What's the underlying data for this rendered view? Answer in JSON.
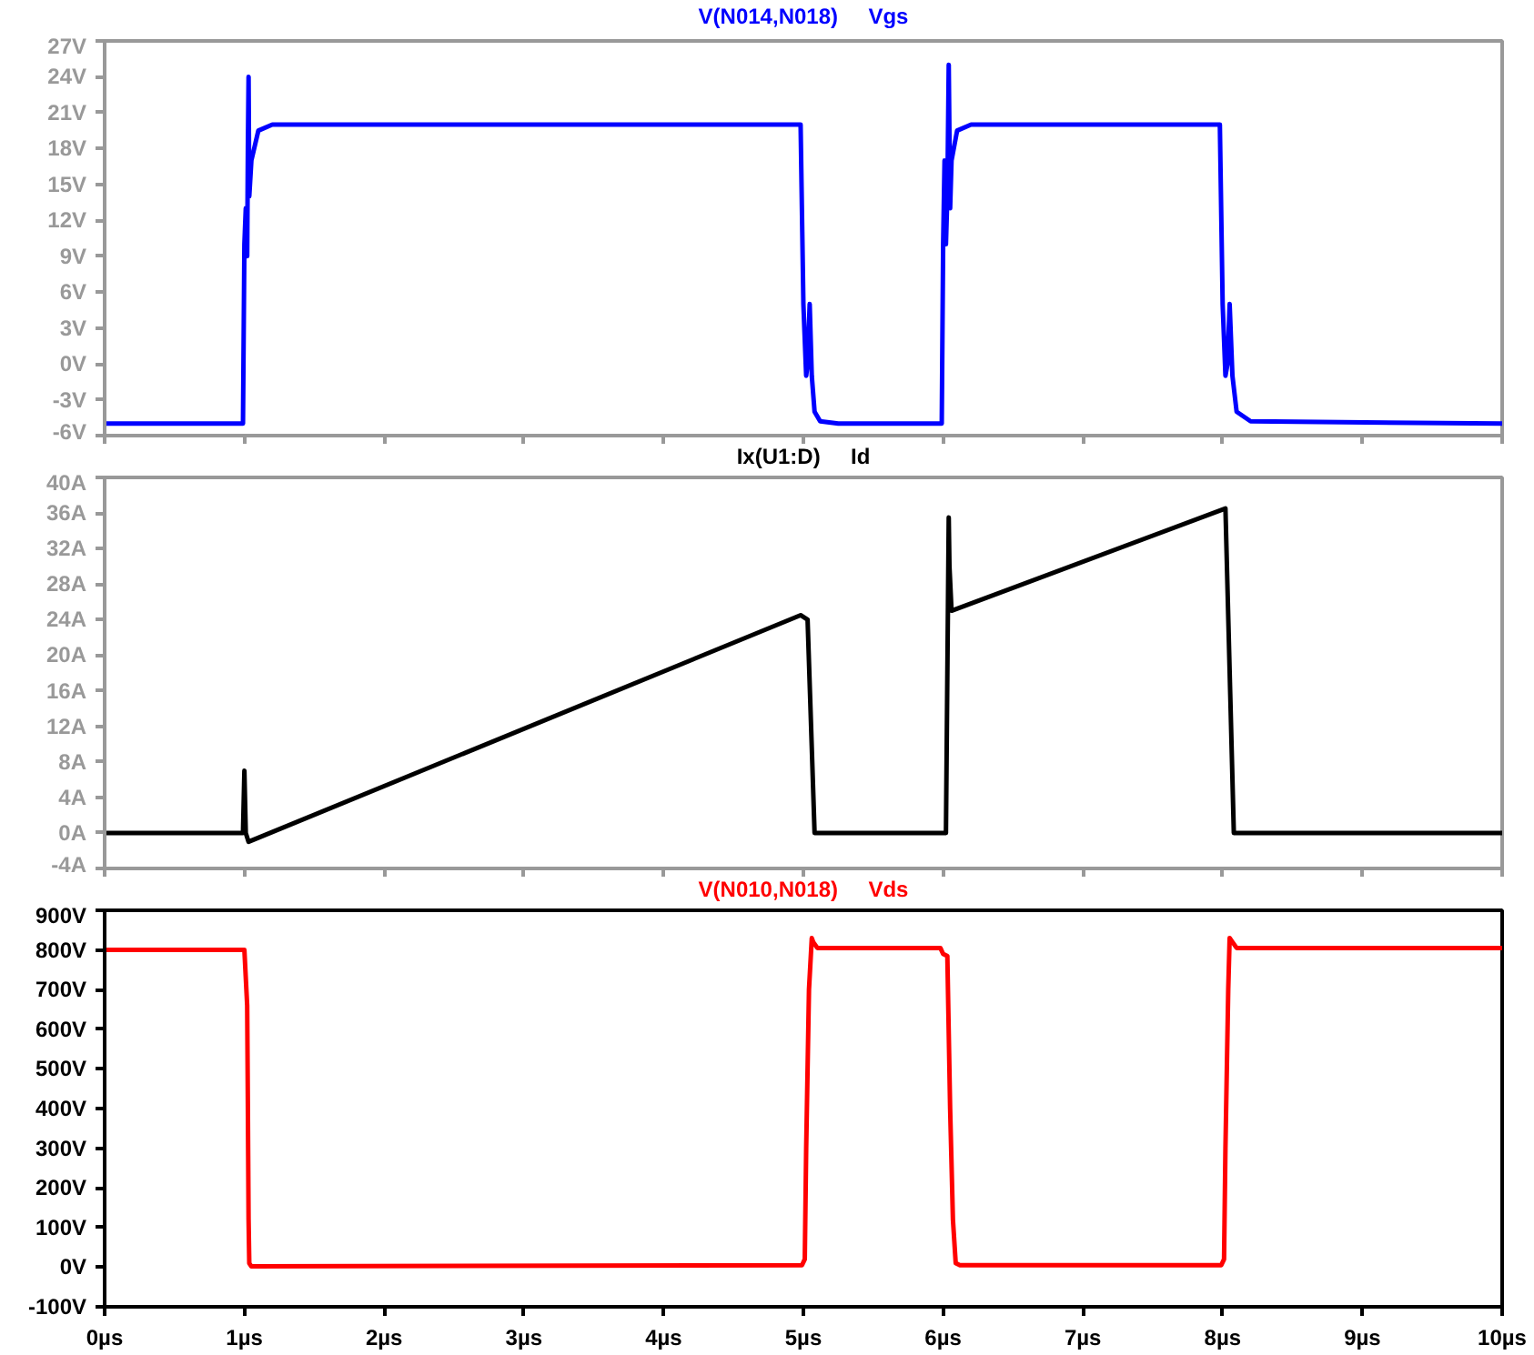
{
  "chart_data": [
    {
      "type": "line",
      "title": "Vgs",
      "x": [
        0,
        0.99,
        1.0,
        1.01,
        1.02,
        1.025,
        1.03,
        1.035,
        1.05,
        1.1,
        1.2,
        4.98,
        5.0,
        5.02,
        5.03,
        5.045,
        5.06,
        5.08,
        5.12,
        5.25,
        5.99,
        6.0,
        6.01,
        6.02,
        6.03,
        6.04,
        6.05,
        6.06,
        6.1,
        6.2,
        6.3,
        7.98,
        8.0,
        8.02,
        8.035,
        8.05,
        8.07,
        8.1,
        8.2,
        10
      ],
      "series": [
        {
          "name": "V(N014,N018)",
          "color": "#0000ff",
          "values": [
            -5,
            -5,
            10,
            13,
            9,
            18,
            24,
            14,
            17,
            19.5,
            20,
            20,
            5,
            -1,
            0,
            5,
            -1,
            -4,
            -4.8,
            -5,
            -5,
            10,
            17,
            10,
            14,
            25,
            13,
            17,
            19.5,
            20,
            20,
            20,
            5,
            -1,
            0,
            5,
            -1,
            -4,
            -4.8,
            -5
          ]
        }
      ],
      "xlim": [
        0,
        10
      ],
      "xticks": [
        {
          "value": 0,
          "label": null
        },
        {
          "value": 1,
          "label": null
        },
        {
          "value": 2,
          "label": null
        },
        {
          "value": 3,
          "label": null
        },
        {
          "value": 4,
          "label": null
        },
        {
          "value": 5,
          "label": null
        },
        {
          "value": 6,
          "label": null
        },
        {
          "value": 7,
          "label": null
        },
        {
          "value": 8,
          "label": null
        },
        {
          "value": 9,
          "label": null
        },
        {
          "value": 10,
          "label": null
        }
      ],
      "ylim": [
        -6,
        27
      ],
      "yticks": [
        {
          "value": -6,
          "label": "-6V"
        },
        {
          "value": -3,
          "label": "-3V"
        },
        {
          "value": 0,
          "label": "0V"
        },
        {
          "value": 3,
          "label": "3V"
        },
        {
          "value": 6,
          "label": "6V"
        },
        {
          "value": 9,
          "label": "9V"
        },
        {
          "value": 12,
          "label": "12V"
        },
        {
          "value": 15,
          "label": "15V"
        },
        {
          "value": 18,
          "label": "18V"
        },
        {
          "value": 21,
          "label": "21V"
        },
        {
          "value": 24,
          "label": "24V"
        },
        {
          "value": 27,
          "label": "27V"
        }
      ],
      "tick_labels": "y",
      "grid": false,
      "line_style": "solid",
      "marker": "none"
    },
    {
      "type": "line",
      "title": "Id",
      "x": [
        0,
        0.99,
        1.0,
        1.01,
        1.03,
        4.98,
        5.03,
        5.08,
        6.02,
        6.04,
        6.045,
        6.06,
        8.02,
        8.08,
        10
      ],
      "series": [
        {
          "name": "Ix(U1:D)",
          "color": "#000000",
          "values": [
            0,
            0,
            7,
            0,
            -1,
            24.5,
            24,
            0,
            0,
            35.5,
            30,
            25,
            36.5,
            0,
            0
          ]
        }
      ],
      "xlim": [
        0,
        10
      ],
      "xticks": [
        {
          "value": 0,
          "label": null
        },
        {
          "value": 1,
          "label": null
        },
        {
          "value": 2,
          "label": null
        },
        {
          "value": 3,
          "label": null
        },
        {
          "value": 4,
          "label": null
        },
        {
          "value": 5,
          "label": null
        },
        {
          "value": 6,
          "label": null
        },
        {
          "value": 7,
          "label": null
        },
        {
          "value": 8,
          "label": null
        },
        {
          "value": 9,
          "label": null
        },
        {
          "value": 10,
          "label": null
        }
      ],
      "ylim": [
        -4,
        40
      ],
      "yticks": [
        {
          "value": -4,
          "label": "-4A"
        },
        {
          "value": 0,
          "label": "0A"
        },
        {
          "value": 4,
          "label": "4A"
        },
        {
          "value": 8,
          "label": "8A"
        },
        {
          "value": 12,
          "label": "12A"
        },
        {
          "value": 16,
          "label": "16A"
        },
        {
          "value": 20,
          "label": "20A"
        },
        {
          "value": 24,
          "label": "24A"
        },
        {
          "value": 28,
          "label": "28A"
        },
        {
          "value": 32,
          "label": "32A"
        },
        {
          "value": 36,
          "label": "36A"
        },
        {
          "value": 40,
          "label": "40A"
        }
      ],
      "tick_labels": "y",
      "grid": false,
      "line_style": "solid",
      "marker": "none"
    },
    {
      "type": "line",
      "title": "Vds",
      "x": [
        0,
        1.0,
        1.02,
        1.025,
        1.03,
        1.035,
        1.05,
        4.99,
        5.01,
        5.02,
        5.04,
        5.06,
        5.07,
        5.1,
        5.98,
        6.0,
        6.03,
        6.05,
        6.07,
        6.09,
        6.12,
        7.99,
        8.01,
        8.02,
        8.04,
        8.05,
        8.07,
        8.1,
        10
      ],
      "series": [
        {
          "name": "V(N010,N018)",
          "color": "#ff0000",
          "values": [
            800,
            800,
            660,
            400,
            120,
            10,
            2,
            5,
            20,
            300,
            700,
            830,
            820,
            805,
            805,
            790,
            785,
            400,
            120,
            10,
            5,
            5,
            20,
            300,
            700,
            830,
            820,
            805,
            805
          ]
        }
      ],
      "xlim": [
        0,
        10
      ],
      "xticks": [
        {
          "value": 0,
          "label": "0µs"
        },
        {
          "value": 1,
          "label": "1µs"
        },
        {
          "value": 2,
          "label": "2µs"
        },
        {
          "value": 3,
          "label": "3µs"
        },
        {
          "value": 4,
          "label": "4µs"
        },
        {
          "value": 5,
          "label": "5µs"
        },
        {
          "value": 6,
          "label": "6µs"
        },
        {
          "value": 7,
          "label": "7µs"
        },
        {
          "value": 8,
          "label": "8µs"
        },
        {
          "value": 9,
          "label": "9µs"
        },
        {
          "value": 10,
          "label": "10µs"
        }
      ],
      "ylim": [
        -100,
        900
      ],
      "yticks": [
        {
          "value": -100,
          "label": "-100V"
        },
        {
          "value": 0,
          "label": "0V"
        },
        {
          "value": 100,
          "label": "100V"
        },
        {
          "value": 200,
          "label": "200V"
        },
        {
          "value": 300,
          "label": "300V"
        },
        {
          "value": 400,
          "label": "400V"
        },
        {
          "value": 500,
          "label": "500V"
        },
        {
          "value": 600,
          "label": "600V"
        },
        {
          "value": 700,
          "label": "700V"
        },
        {
          "value": 800,
          "label": "800V"
        },
        {
          "value": 900,
          "label": "900V"
        }
      ],
      "grid": false,
      "line_style": "solid",
      "marker": "none"
    }
  ]
}
